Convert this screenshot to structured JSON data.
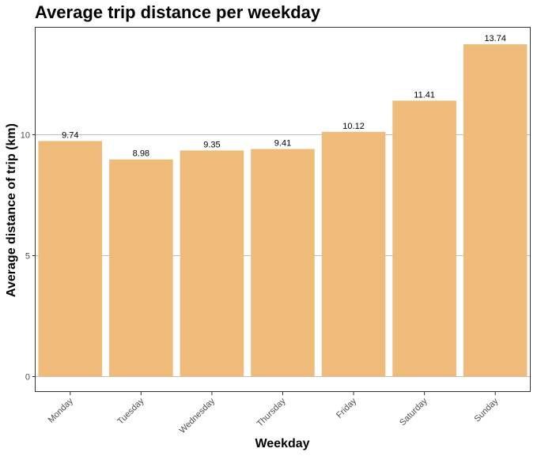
{
  "chart_data": {
    "type": "bar",
    "title": "Average trip distance per weekday",
    "xlabel": "Weekday",
    "ylabel": "Average distance of trip (km)",
    "categories": [
      "Monday",
      "Tuesday",
      "Wednesday",
      "Thursday",
      "Friday",
      "Saturday",
      "Sunday"
    ],
    "values": [
      9.74,
      8.98,
      9.35,
      9.41,
      10.12,
      11.41,
      13.74
    ],
    "value_labels": [
      "9.74",
      "8.98",
      "9.35",
      "9.41",
      "10.12",
      "11.41",
      "13.74"
    ],
    "ylim": [
      0,
      14.4
    ],
    "yticks": [
      0,
      5,
      10
    ],
    "ytick_labels": [
      "0",
      "5",
      "10"
    ],
    "grid": "horizontal major",
    "legend": "none",
    "bar_color": "#EFBB7A",
    "grid_color": "#BEBEBE",
    "panel_border_color": "#333333"
  }
}
